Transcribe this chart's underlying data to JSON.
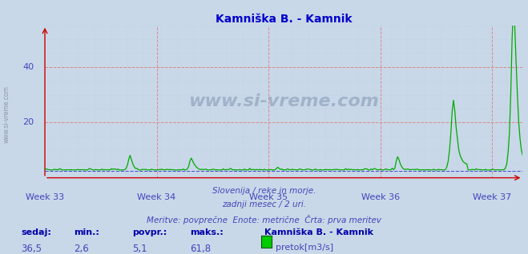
{
  "title": "Kamniška B. - Kamnik",
  "title_color": "#0000cc",
  "bg_color": "#c8d8e8",
  "plot_bg_color": "#c8d8e8",
  "line_color": "#00aa00",
  "min_line_color": "#0000cc",
  "x_tick_labels": [
    "Week 33",
    "Week 34",
    "Week 35",
    "Week 36",
    "Week 37"
  ],
  "x_tick_positions": [
    0,
    84,
    168,
    252,
    336
  ],
  "ylim": [
    0,
    55
  ],
  "yticks": [
    20,
    40
  ],
  "n_points": 360,
  "watermark": "www.si-vreme.com",
  "subtitle1": "Slovenija / reke in morje.",
  "subtitle2": "zadnji mesec / 2 uri.",
  "subtitle3": "Meritve: povprečne  Enote: metrične  Črta: prva meritev",
  "subtitle_color": "#4444bb",
  "stat_labels": [
    "sedaj:",
    "min.:",
    "povpr.:",
    "maks.:"
  ],
  "stat_values": [
    "36,5",
    "2,6",
    "5,1",
    "61,8"
  ],
  "stat_label_color": "#0000aa",
  "stat_value_color": "#4444bb",
  "legend_title": "Kamniška B. - Kamnik",
  "legend_label": "pretok[m3/s]",
  "legend_color": "#00cc00",
  "tick_label_color": "#4444bb",
  "min_value": 2.6,
  "max_value": 61.8,
  "avg_value": 5.1,
  "current_value": 36.5,
  "vline_color": "#dd8888",
  "hline_color": "#dd8888",
  "arrow_color": "#cc0000",
  "minor_grid_color": "#bbccdd",
  "vline_positions": [
    84,
    168,
    252,
    336
  ]
}
